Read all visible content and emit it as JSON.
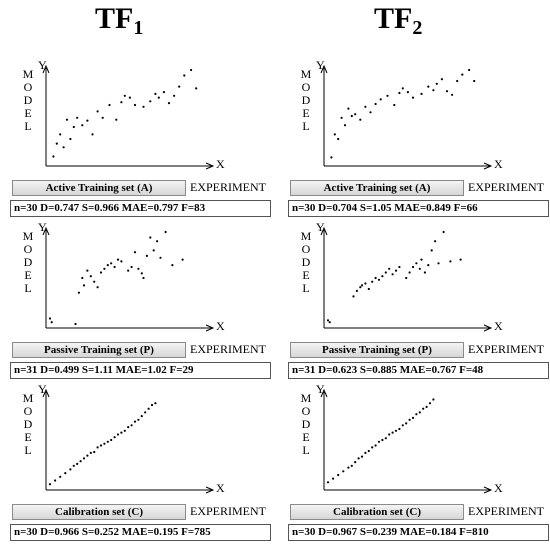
{
  "column_titles": [
    {
      "main": "TF",
      "sub": "1"
    },
    {
      "main": "TF",
      "sub": "2"
    }
  ],
  "axis": {
    "ylabel_letters": [
      "M",
      "O",
      "D",
      "E",
      "L"
    ],
    "y_letter": "Y",
    "x_letter": "X",
    "xlabel": "EXPERIMENT"
  },
  "chart_data": [
    {
      "type": "scatter",
      "column": "TF1",
      "set": "Active Training set (A)",
      "stats": "n=30  D=0.747  S=0.966  MAE=0.797  F=83",
      "x": [
        0.02,
        0.04,
        0.06,
        0.08,
        0.1,
        0.12,
        0.14,
        0.16,
        0.19,
        0.22,
        0.25,
        0.28,
        0.31,
        0.35,
        0.39,
        0.42,
        0.44,
        0.47,
        0.5,
        0.55,
        0.59,
        0.62,
        0.64,
        0.67,
        0.7,
        0.73,
        0.76,
        0.79,
        0.83,
        0.86
      ],
      "y": [
        0.06,
        0.2,
        0.3,
        0.16,
        0.46,
        0.25,
        0.38,
        0.48,
        0.4,
        0.45,
        0.3,
        0.55,
        0.48,
        0.62,
        0.46,
        0.65,
        0.72,
        0.7,
        0.62,
        0.6,
        0.66,
        0.74,
        0.7,
        0.76,
        0.64,
        0.72,
        0.82,
        0.94,
        1.0,
        0.8
      ]
    },
    {
      "type": "scatter",
      "column": "TF2",
      "set": "Active Training set (A)",
      "stats": "n=30  D=0.704  S=1.05  MAE=0.849  F=66",
      "x": [
        0.02,
        0.04,
        0.06,
        0.08,
        0.1,
        0.12,
        0.14,
        0.16,
        0.19,
        0.22,
        0.25,
        0.28,
        0.31,
        0.35,
        0.39,
        0.42,
        0.44,
        0.47,
        0.5,
        0.55,
        0.59,
        0.62,
        0.64,
        0.67,
        0.7,
        0.73,
        0.76,
        0.79,
        0.83,
        0.86
      ],
      "y": [
        0.05,
        0.3,
        0.25,
        0.48,
        0.4,
        0.58,
        0.5,
        0.52,
        0.46,
        0.6,
        0.54,
        0.63,
        0.68,
        0.72,
        0.62,
        0.75,
        0.8,
        0.76,
        0.7,
        0.74,
        0.82,
        0.78,
        0.85,
        0.9,
        0.77,
        0.73,
        0.88,
        0.95,
        1.0,
        0.88
      ]
    },
    {
      "type": "scatter",
      "column": "TF1",
      "set": "Passive Training set (P)",
      "stats": "n=31  D=0.499  S=1.11  MAE=1.02  F=29",
      "x": [
        0.0,
        0.01,
        0.15,
        0.17,
        0.19,
        0.2,
        0.22,
        0.24,
        0.26,
        0.28,
        0.3,
        0.32,
        0.34,
        0.36,
        0.38,
        0.4,
        0.42,
        0.46,
        0.48,
        0.5,
        0.52,
        0.54,
        0.55,
        0.57,
        0.59,
        0.61,
        0.63,
        0.65,
        0.68,
        0.72,
        0.78
      ],
      "y": [
        0.06,
        0.02,
        0.0,
        0.34,
        0.5,
        0.42,
        0.58,
        0.52,
        0.46,
        0.4,
        0.56,
        0.6,
        0.64,
        0.66,
        0.62,
        0.7,
        0.68,
        0.58,
        0.62,
        0.78,
        0.6,
        0.55,
        0.5,
        0.74,
        0.94,
        0.8,
        0.9,
        0.72,
        1.0,
        0.64,
        0.7
      ]
    },
    {
      "type": "scatter",
      "column": "TF2",
      "set": "Passive Training set (P)",
      "stats": "n=31  D=0.623  S=0.885  MAE=0.767  F=48",
      "x": [
        0.0,
        0.01,
        0.15,
        0.17,
        0.19,
        0.2,
        0.22,
        0.24,
        0.26,
        0.28,
        0.3,
        0.32,
        0.34,
        0.36,
        0.38,
        0.4,
        0.42,
        0.46,
        0.48,
        0.5,
        0.52,
        0.54,
        0.55,
        0.57,
        0.59,
        0.61,
        0.63,
        0.65,
        0.68,
        0.72,
        0.78
      ],
      "y": [
        0.04,
        0.02,
        0.3,
        0.36,
        0.4,
        0.42,
        0.44,
        0.38,
        0.46,
        0.5,
        0.48,
        0.52,
        0.56,
        0.6,
        0.54,
        0.58,
        0.62,
        0.5,
        0.56,
        0.62,
        0.66,
        0.6,
        0.7,
        0.56,
        0.64,
        0.8,
        0.9,
        0.66,
        1.0,
        0.68,
        0.7
      ]
    },
    {
      "type": "scatter",
      "column": "TF1",
      "set": "Calibration set (C)",
      "stats": "n=30  D=0.966  S=0.252  MAE=0.195  F=785",
      "x": [
        0.0,
        0.03,
        0.06,
        0.09,
        0.12,
        0.14,
        0.16,
        0.18,
        0.2,
        0.22,
        0.24,
        0.26,
        0.28,
        0.3,
        0.32,
        0.34,
        0.36,
        0.38,
        0.4,
        0.42,
        0.44,
        0.46,
        0.48,
        0.5,
        0.52,
        0.54,
        0.56,
        0.58,
        0.6,
        0.62
      ],
      "y": [
        0.02,
        0.06,
        0.1,
        0.14,
        0.18,
        0.22,
        0.24,
        0.27,
        0.3,
        0.33,
        0.36,
        0.37,
        0.42,
        0.44,
        0.46,
        0.48,
        0.5,
        0.53,
        0.56,
        0.58,
        0.6,
        0.64,
        0.66,
        0.7,
        0.72,
        0.76,
        0.8,
        0.84,
        0.88,
        0.9
      ]
    },
    {
      "type": "scatter",
      "column": "TF2",
      "set": "Calibration set (C)",
      "stats": "n=30  D=0.967  S=0.239  MAE=0.184  F=810",
      "x": [
        0.0,
        0.03,
        0.06,
        0.09,
        0.12,
        0.14,
        0.16,
        0.18,
        0.2,
        0.22,
        0.24,
        0.26,
        0.28,
        0.3,
        0.32,
        0.34,
        0.36,
        0.38,
        0.4,
        0.42,
        0.44,
        0.46,
        0.48,
        0.5,
        0.52,
        0.54,
        0.56,
        0.58,
        0.6,
        0.62
      ],
      "y": [
        0.04,
        0.08,
        0.12,
        0.16,
        0.2,
        0.22,
        0.26,
        0.3,
        0.32,
        0.36,
        0.38,
        0.42,
        0.44,
        0.48,
        0.5,
        0.52,
        0.56,
        0.58,
        0.6,
        0.62,
        0.66,
        0.68,
        0.72,
        0.74,
        0.78,
        0.8,
        0.84,
        0.86,
        0.9,
        0.94
      ]
    }
  ]
}
